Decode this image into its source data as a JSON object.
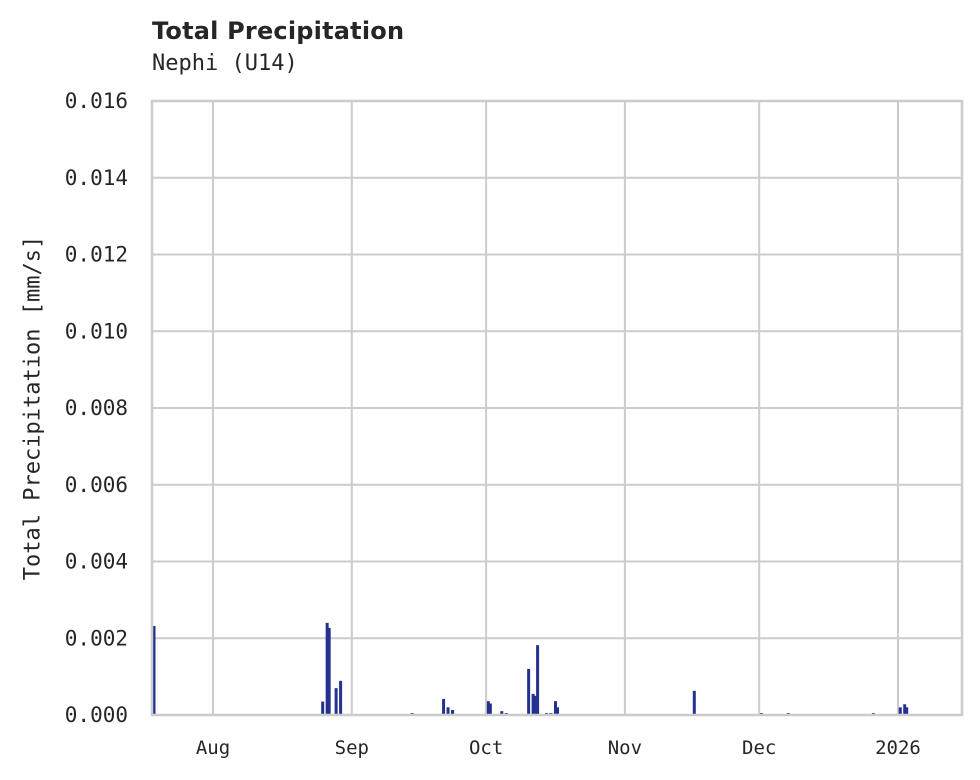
{
  "header": {
    "title": "Total Precipitation",
    "subtitle": "Nephi (U14)"
  },
  "axes": {
    "ylabel": "Total Precipitation [mm/s]",
    "yticks": [
      "0.000",
      "0.002",
      "0.004",
      "0.006",
      "0.008",
      "0.010",
      "0.012",
      "0.014",
      "0.016"
    ],
    "xticks": [
      "Aug",
      "Sep",
      "Oct",
      "Nov",
      "Dec",
      "2026"
    ]
  },
  "colors": {
    "bar": "#24318f",
    "grid": "#cccccc",
    "text": "#262626"
  },
  "chart_data": {
    "type": "bar",
    "title": "Total Precipitation",
    "subtitle": "Nephi (U14)",
    "xlabel": "",
    "ylabel": "Total Precipitation [mm/s]",
    "ylim": [
      0,
      0.016
    ],
    "xlim": [
      "2025-07-19",
      "2026-01-20"
    ],
    "grid": true,
    "legend": null,
    "x_tick_labels": [
      "Aug",
      "Sep",
      "Oct",
      "Nov",
      "Dec",
      "2026"
    ],
    "y_tick_labels": [
      "0.000",
      "0.002",
      "0.004",
      "0.006",
      "0.008",
      "0.010",
      "0.012",
      "0.014",
      "0.016"
    ],
    "series": [
      {
        "name": "Total Precipitation",
        "points": [
          {
            "x": "2025-07-18",
            "y": 0.00232
          },
          {
            "x": "2025-08-25",
            "y": 0.00035
          },
          {
            "x": "2025-08-26",
            "y": 0.0024
          },
          {
            "x": "2025-08-26",
            "y": 0.00227
          },
          {
            "x": "2025-08-28",
            "y": 0.0007
          },
          {
            "x": "2025-08-29",
            "y": 0.00089
          },
          {
            "x": "2025-09-14",
            "y": 5e-05
          },
          {
            "x": "2025-09-21",
            "y": 0.00042
          },
          {
            "x": "2025-09-22",
            "y": 0.0002
          },
          {
            "x": "2025-09-23",
            "y": 0.00013
          },
          {
            "x": "2025-10-01",
            "y": 0.00036
          },
          {
            "x": "2025-10-01",
            "y": 0.0003
          },
          {
            "x": "2025-10-04",
            "y": 0.0001
          },
          {
            "x": "2025-10-05",
            "y": 5e-05
          },
          {
            "x": "2025-10-10",
            "y": 0.0012
          },
          {
            "x": "2025-10-11",
            "y": 0.00055
          },
          {
            "x": "2025-10-11",
            "y": 0.0005
          },
          {
            "x": "2025-10-12",
            "y": 0.00182
          },
          {
            "x": "2025-10-14",
            "y": 5e-05
          },
          {
            "x": "2025-10-15",
            "y": 5e-05
          },
          {
            "x": "2025-10-16",
            "y": 0.00036
          },
          {
            "x": "2025-10-16",
            "y": 0.0002
          },
          {
            "x": "2025-11-16",
            "y": 0.00063
          },
          {
            "x": "2025-12-01",
            "y": 5e-05
          },
          {
            "x": "2025-12-07",
            "y": 5e-05
          },
          {
            "x": "2025-12-26",
            "y": 5e-05
          },
          {
            "x": "2026-01-01",
            "y": 0.0002
          },
          {
            "x": "2026-01-02",
            "y": 0.00028
          },
          {
            "x": "2026-01-02",
            "y": 0.0002
          }
        ]
      }
    ]
  }
}
